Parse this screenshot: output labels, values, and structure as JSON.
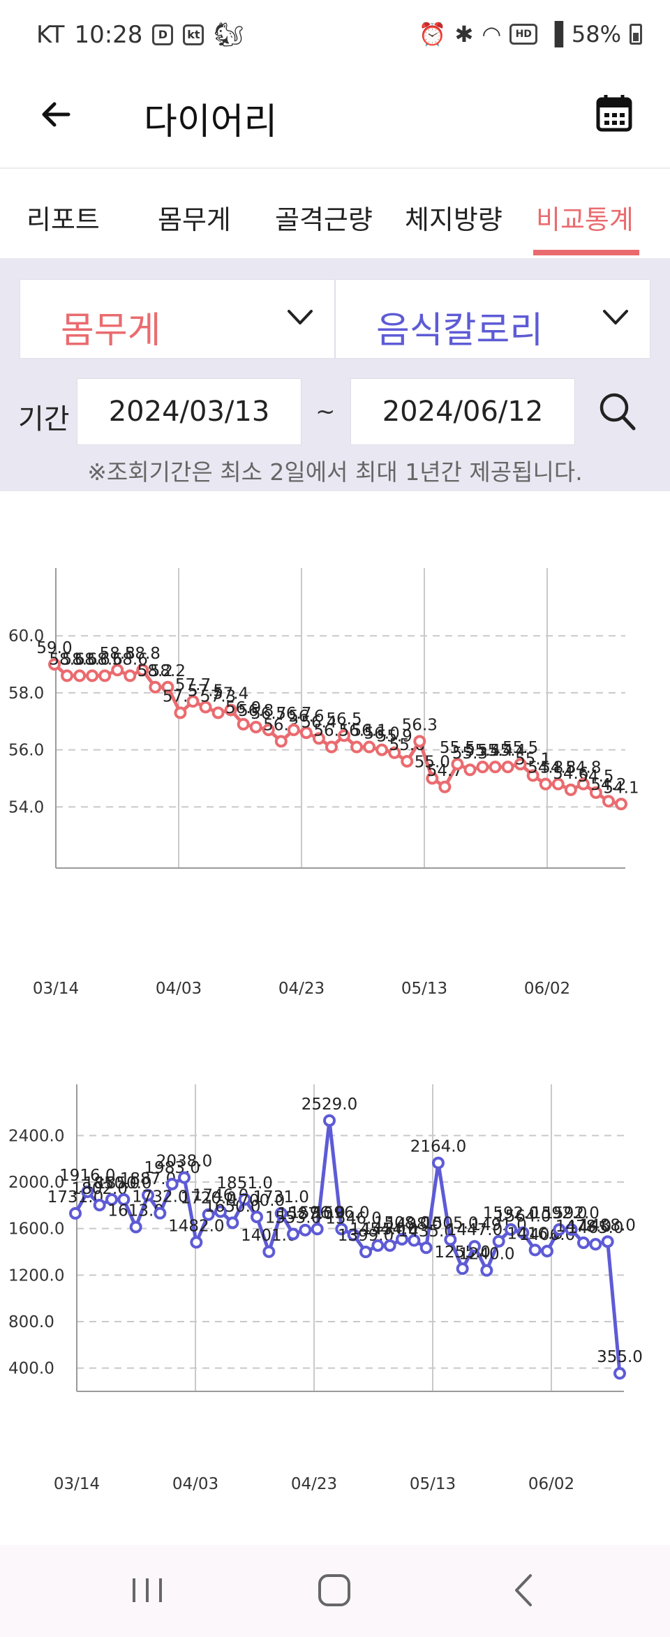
{
  "status_bar": {
    "carrier": "KT",
    "time": "10:28",
    "kt_badge": "kt",
    "battery": "58%",
    "icons": [
      "daum-icon",
      "kt-icon",
      "squirrel-icon",
      "alarm-icon",
      "bluetooth-icon",
      "wifi-icon",
      "hd-icon",
      "signal-icon",
      "battery-icon"
    ]
  },
  "header": {
    "title": "다이어리",
    "back_icon": "arrow-left-icon",
    "calendar_icon": "calendar-icon"
  },
  "tabs": [
    {
      "label": "리포트",
      "active": false
    },
    {
      "label": "몸무게",
      "active": false
    },
    {
      "label": "골격근량",
      "active": false
    },
    {
      "label": "체지방량",
      "active": false
    },
    {
      "label": "비교통계",
      "active": true
    }
  ],
  "filters": {
    "metric_left": "몸무게",
    "metric_right": "음식칼로리",
    "period_label": "기간",
    "start_date": "2024/03/13",
    "end_date": "2024/06/12",
    "separator": "~",
    "notice": "※조회기간은 최소 2일에서 최대 1년간 제공됩니다."
  },
  "colors": {
    "accent_red": "#ea6b6f",
    "accent_blue": "#5e5bd6",
    "panel_bg": "#e9e8f2"
  },
  "chart_data": [
    {
      "type": "line",
      "color": "#ea6b6f",
      "xticks": [
        "03/14",
        "04/03",
        "04/23",
        "05/13",
        "06/02"
      ],
      "yticks": [
        "54.0",
        "56.0",
        "58.0",
        "60.0"
      ],
      "ylim": [
        52.1,
        61.4
      ],
      "grid": true,
      "x": [
        0,
        1,
        2,
        3,
        4,
        5,
        6,
        7,
        8,
        9,
        10,
        11,
        12,
        13,
        14,
        15,
        16,
        17,
        18,
        19,
        20,
        21,
        22,
        23,
        24,
        25,
        26,
        27,
        28,
        29,
        30,
        31,
        32,
        33,
        34,
        35,
        36,
        37,
        38,
        39,
        40,
        41,
        42,
        43,
        44,
        45
      ],
      "values": [
        59.0,
        58.6,
        58.6,
        58.6,
        58.6,
        58.8,
        58.6,
        58.8,
        58.2,
        58.2,
        57.3,
        57.7,
        57.5,
        57.3,
        57.4,
        56.9,
        56.8,
        56.7,
        56.3,
        56.7,
        56.6,
        56.4,
        56.1,
        56.5,
        56.1,
        56.1,
        56.0,
        55.9,
        55.6,
        56.3,
        55.0,
        54.7,
        55.5,
        55.3,
        55.4,
        55.4,
        55.4,
        55.5,
        55.1,
        54.8,
        54.8,
        54.6,
        54.8,
        54.5,
        54.2,
        54.1
      ],
      "labels": [
        "59.0",
        "58.6",
        "58.6",
        "58.6",
        "58.6",
        "58.8",
        "58.6",
        "58.8",
        "58.2",
        "58.2",
        "57.3",
        "57.7",
        "57.5",
        "57.3",
        "57.4",
        "56.9",
        "56.8",
        "56.7",
        "56.3",
        "56.7",
        "56.6",
        "56.4",
        "56.1",
        "56.5",
        "56.1",
        "56.1",
        "56.0",
        "55.9",
        "55.6",
        "56.3",
        "55.0",
        "54.7",
        "55.5",
        "55.3",
        "55.4",
        "55.4",
        "55.4",
        "55.5",
        "55.1",
        "54.8",
        "54.8",
        "54.6",
        "54.8",
        "54.5",
        "54.2",
        "54.1"
      ]
    },
    {
      "type": "line",
      "color": "#5e5bd6",
      "xticks": [
        "03/14",
        "04/03",
        "04/23",
        "05/13",
        "06/02"
      ],
      "yticks": [
        "400.0",
        "800.0",
        "1200.0",
        "1600.0",
        "2000.0",
        "2400.0"
      ],
      "ylim": [
        260,
        2600
      ],
      "grid": true,
      "x": [
        0,
        1,
        2,
        3,
        4,
        5,
        6,
        7,
        8,
        9,
        10,
        11,
        12,
        13,
        14,
        15,
        16,
        17,
        18,
        19,
        20,
        21,
        22,
        23,
        24,
        25,
        26,
        27,
        28,
        29,
        30,
        31,
        32,
        33,
        34,
        35,
        36,
        37,
        38,
        39,
        40,
        41,
        42,
        43,
        44,
        45
      ],
      "values": [
        1731,
        1916,
        1802,
        1850,
        1850,
        1613,
        1887,
        1732,
        1983,
        2038,
        1482,
        1720,
        1746,
        1650,
        1851,
        1700,
        1401,
        1731,
        1553,
        1587,
        1596,
        2529,
        1596,
        1546,
        1399,
        1454,
        1454,
        1508,
        1498,
        1435,
        2164,
        1505,
        1255,
        1447,
        1240,
        1491,
        1592,
        1564,
        1416,
        1406,
        1592,
        1592,
        1478,
        1465,
        1488,
        355
      ],
      "labels": [
        "1731.0",
        "1916.0",
        "1802.0",
        "1850.0",
        "1850.0",
        "1613.0",
        "1887.0",
        "1732.0",
        "1983.0",
        "2038.0",
        "1482.0",
        "1720.0",
        "1746.0",
        "1650.0",
        "1851.0",
        "1700.0",
        "1401.0",
        "1731.0",
        "1553.0",
        "1587.0",
        "1596.0",
        "2529.0",
        "1596.0",
        "1546.0",
        "1399.0",
        "1454.0",
        "1454.0",
        "1508.0",
        "1498.0",
        "1435.0",
        "2164.0",
        "1505.0",
        "1255.0",
        "1447.0",
        "1240.0",
        "1491.0",
        "1592.0",
        "1564.0",
        "1416.0",
        "1406.0",
        "1592.0",
        "1592.0",
        "1478.0",
        "1465.0",
        "1488.0",
        "355.0"
      ]
    }
  ],
  "nav_bar": {
    "recents_icon": "recents-icon",
    "home_icon": "home-icon",
    "back_icon": "back-chevron-icon"
  }
}
